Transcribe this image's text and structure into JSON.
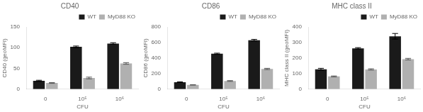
{
  "chart_data": [
    {
      "type": "bar",
      "title": "CD40",
      "x_label": "CFU",
      "y_label": "CD40 (geoMFI)",
      "categories": [
        "0",
        "10⁵",
        "10⁶"
      ],
      "series": [
        {
          "name": "WT",
          "color": "#1a1a1a",
          "values": [
            20,
            102,
            110
          ],
          "errors": [
            1.5,
            2,
            2
          ]
        },
        {
          "name": "MyD88 KO",
          "color": "#b0b0b0",
          "values": [
            15,
            27,
            62
          ],
          "errors": [
            1,
            2,
            2
          ]
        }
      ],
      "ylim": [
        0,
        150
      ],
      "yticks": [
        0,
        50,
        100,
        150
      ],
      "grid": false,
      "legend": "upper right"
    },
    {
      "type": "bar",
      "title": "CD86",
      "x_label": "CFU",
      "y_label": "CD86 (geoMFI)",
      "categories": [
        "0",
        "10⁵",
        "10⁶"
      ],
      "series": [
        {
          "name": "WT",
          "color": "#1a1a1a",
          "values": [
            90,
            455,
            630
          ],
          "errors": [
            5,
            8,
            10
          ]
        },
        {
          "name": "MyD88 KO",
          "color": "#b0b0b0",
          "values": [
            55,
            105,
            260
          ],
          "errors": [
            3,
            5,
            8
          ]
        }
      ],
      "ylim": [
        0,
        800
      ],
      "yticks": [
        0,
        200,
        400,
        600,
        800
      ],
      "grid": false,
      "legend": "upper right"
    },
    {
      "type": "bar",
      "title": "MHC class II",
      "x_label": "CFU",
      "y_label": "MHC class II (geoMFI)",
      "categories": [
        "0",
        "10⁵",
        "10⁶"
      ],
      "series": [
        {
          "name": "WT",
          "color": "#1a1a1a",
          "values": [
            128,
            262,
            340
          ],
          "errors": [
            6,
            5,
            18
          ]
        },
        {
          "name": "MyD88 KO",
          "color": "#b0b0b0",
          "values": [
            82,
            127,
            193
          ],
          "errors": [
            3,
            4,
            5
          ]
        }
      ],
      "ylim": [
        0,
        400
      ],
      "yticks": [
        0,
        100,
        200,
        300,
        400
      ],
      "grid": false,
      "legend": "upper right"
    }
  ]
}
